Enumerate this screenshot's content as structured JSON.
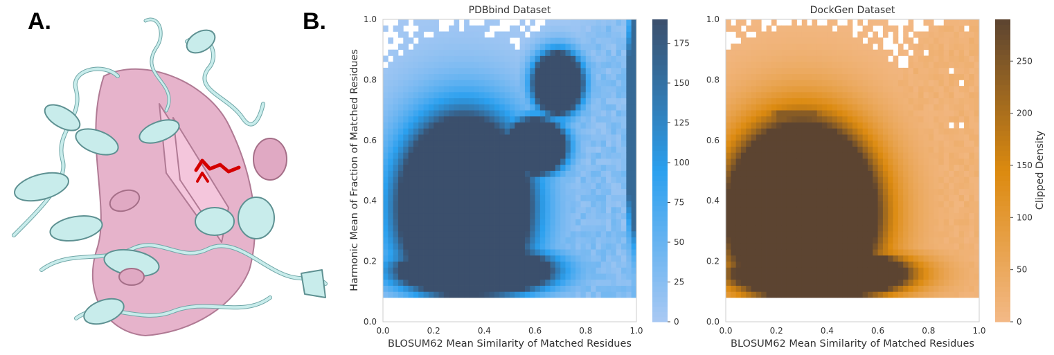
{
  "panel_labels": {
    "a": "A.",
    "b": "B."
  },
  "protein_image": {
    "icon": "protein-cartoon-icon",
    "colors": {
      "structure_1": "#b9e3e2",
      "structure_2": "#e0a9c3",
      "ligand": "#d40000"
    }
  },
  "chart_data": [
    {
      "type": "heatmap",
      "title": "PDBbind Dataset",
      "xlabel": "BLOSUM62 Mean Similarity of Matched Residues",
      "ylabel": "Harmonic Mean of Fraction of Matched Residues",
      "xlim": [
        0.0,
        1.0
      ],
      "ylim": [
        0.0,
        1.0
      ],
      "xticks": [
        "0.0",
        "0.2",
        "0.4",
        "0.6",
        "0.8",
        "1.0"
      ],
      "yticks": [
        "0.0",
        "0.2",
        "0.4",
        "0.6",
        "0.8",
        "1.0"
      ],
      "grid": false,
      "colorbar": {
        "label": "",
        "range": [
          0,
          190
        ],
        "ticks": [
          "0",
          "25",
          "50",
          "75",
          "100",
          "125",
          "150",
          "175"
        ],
        "colors": [
          "#a9c9f3",
          "#2ba0ef",
          "#3b4f6c"
        ]
      },
      "bins": 50,
      "density_regions": [
        {
          "shape": "blob",
          "cx": 0.32,
          "cy": 0.38,
          "rx": 0.26,
          "ry": 0.3,
          "value": 190
        },
        {
          "shape": "blob",
          "cx": 0.36,
          "cy": 0.17,
          "rx": 0.3,
          "ry": 0.08,
          "value": 190
        },
        {
          "shape": "blob",
          "cx": 0.69,
          "cy": 0.79,
          "rx": 0.095,
          "ry": 0.1,
          "value": 190
        },
        {
          "shape": "blob",
          "cx": 0.6,
          "cy": 0.58,
          "rx": 0.12,
          "ry": 0.09,
          "value": 190
        },
        {
          "shape": "band",
          "cx": 0.985,
          "cy": 0.65,
          "rx": 0.02,
          "ry": 0.35,
          "value": 160
        }
      ]
    },
    {
      "type": "heatmap",
      "title": "DockGen Dataset",
      "xlabel": "BLOSUM62 Mean Similarity of Matched Residues",
      "ylabel": "",
      "xlim": [
        0.0,
        1.0
      ],
      "ylim": [
        0.0,
        1.0
      ],
      "xticks": [
        "0.0",
        "0.2",
        "0.4",
        "0.6",
        "0.8",
        "1.0"
      ],
      "yticks": [
        "0.0",
        "0.2",
        "0.4",
        "0.6",
        "0.8",
        "1.0"
      ],
      "grid": false,
      "colorbar": {
        "label": "Clipped Density",
        "range": [
          0,
          290
        ],
        "ticks": [
          "0",
          "50",
          "100",
          "150",
          "200",
          "250"
        ],
        "colors": [
          "#f3b987",
          "#dc8a0f",
          "#5c4431"
        ]
      },
      "bins": 50,
      "density_regions": [
        {
          "shape": "blob",
          "cx": 0.3,
          "cy": 0.36,
          "rx": 0.3,
          "ry": 0.3,
          "value": 290
        },
        {
          "shape": "blob",
          "cx": 0.37,
          "cy": 0.16,
          "rx": 0.34,
          "ry": 0.08,
          "value": 290
        },
        {
          "shape": "band",
          "cx": 0.28,
          "cy": 0.68,
          "rx": 0.14,
          "ry": 0.012,
          "value": 240
        }
      ]
    }
  ]
}
